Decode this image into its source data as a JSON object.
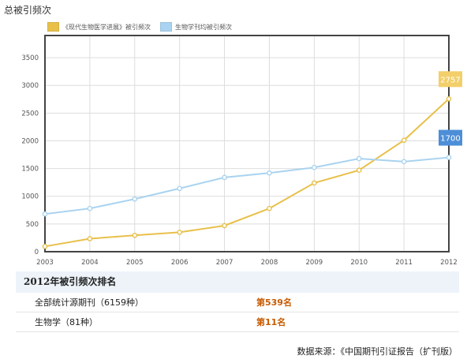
{
  "chart_data": {
    "type": "line",
    "title": "总被引频次",
    "x": [
      "2003",
      "2004",
      "2005",
      "2006",
      "2007",
      "2008",
      "2009",
      "2010",
      "2011",
      "2012"
    ],
    "series": [
      {
        "name": "《现代生物医学进展》被引频次",
        "color": "#e8c04a",
        "values": [
          95,
          235,
          295,
          350,
          470,
          780,
          1240,
          1470,
          2010,
          2757
        ]
      },
      {
        "name": "生物学刊均被引频次",
        "color": "#a9d3f0",
        "values": [
          680,
          780,
          950,
          1140,
          1340,
          1420,
          1520,
          1680,
          1625,
          1700
        ]
      }
    ],
    "end_labels": [
      "2757",
      "1700"
    ],
    "end_label_colors": [
      "#f3cf6a",
      "#4d8ed8"
    ],
    "y_ticks": [
      "0",
      "500",
      "1000",
      "1500",
      "2000",
      "2500",
      "3000",
      "3500"
    ],
    "ylim": [
      0,
      3900
    ],
    "grid": true,
    "legend_position": "top-left"
  },
  "ranking": {
    "heading": "2012年被引频次排名",
    "rows": [
      {
        "label": "全部统计源期刊（6159种）",
        "value": "第539名"
      },
      {
        "label": "生物学（81种）",
        "value": "第11名"
      }
    ]
  },
  "source": "数据来源：《中国期刊引证报告（扩刊版）"
}
